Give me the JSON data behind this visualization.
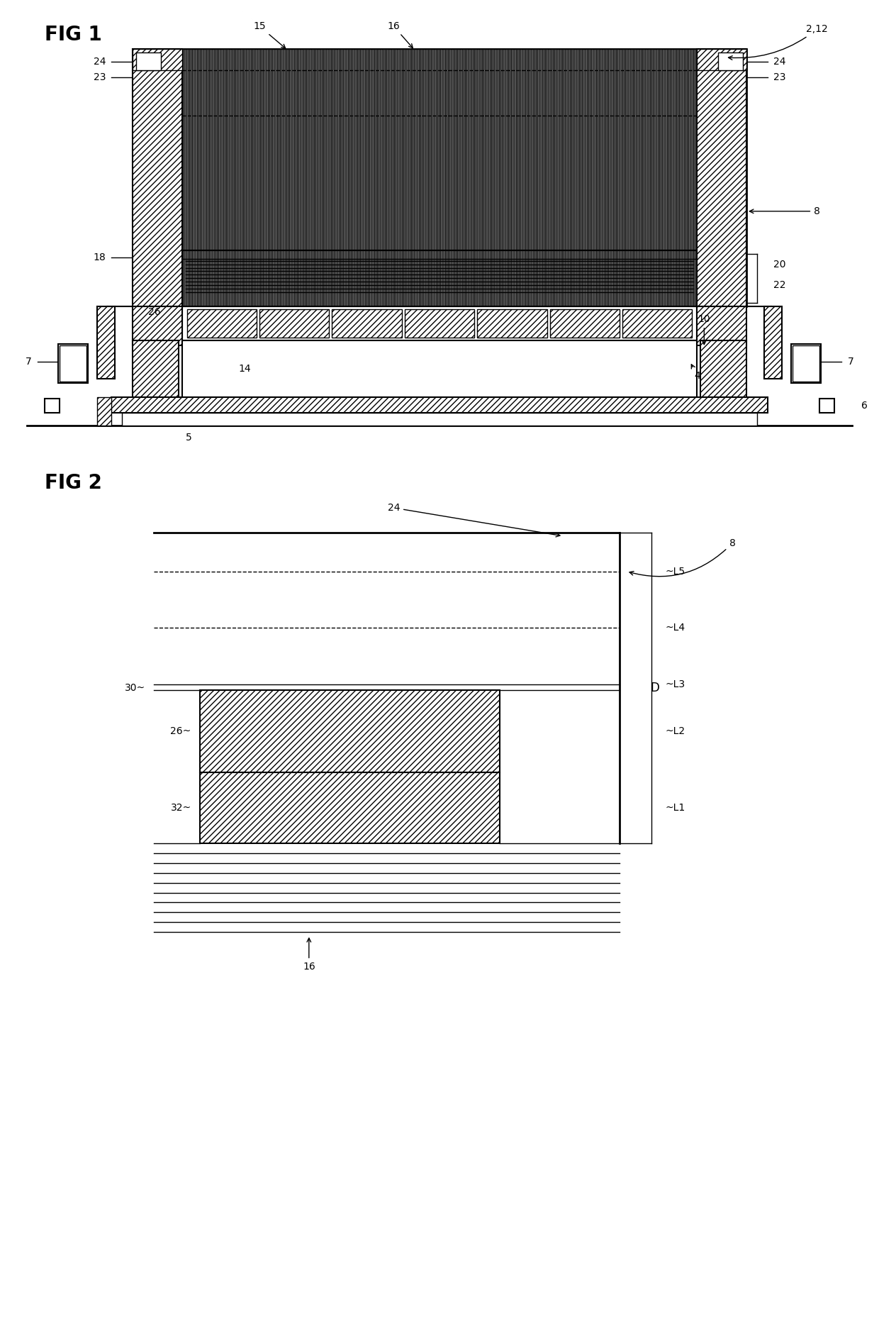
{
  "fig_width": 12.4,
  "fig_height": 18.71,
  "bg_color": "#ffffff",
  "fig1_title": "FIG 1",
  "fig2_title": "FIG 2",
  "labels": {
    "2_12": "2,12",
    "4": "4",
    "5": "5",
    "6": "6",
    "7": "7",
    "8": "8",
    "10": "10",
    "14": "14",
    "15": "15",
    "16": "16",
    "18": "18",
    "20": "20",
    "22": "22",
    "23": "23",
    "24": "24",
    "26": "26",
    "30": "30",
    "32": "32",
    "D": "D",
    "L1": "L1",
    "L2": "L2",
    "L3": "L3",
    "L4": "L4",
    "L5": "L5"
  }
}
